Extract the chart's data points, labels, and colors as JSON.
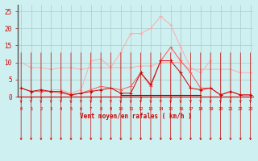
{
  "x": [
    0,
    1,
    2,
    3,
    4,
    5,
    6,
    7,
    8,
    9,
    10,
    11,
    12,
    13,
    14,
    15,
    16,
    17,
    18,
    19,
    20,
    21,
    22,
    23
  ],
  "line_mean": [
    2.5,
    1.5,
    2,
    1.5,
    1.5,
    0.5,
    1,
    1.5,
    2,
    2.5,
    1,
    1,
    7,
    3.5,
    10.5,
    10.5,
    7,
    2.5,
    2,
    2.5,
    0.5,
    1.5,
    0.5,
    0.5
  ],
  "line_flat": [
    null,
    null,
    null,
    null,
    null,
    null,
    null,
    null,
    null,
    null,
    0.5,
    0.5,
    0.5,
    0.5,
    0.5,
    0.5,
    0.5,
    0.5,
    0.5,
    null,
    null,
    null,
    null,
    null
  ],
  "line_avg": [
    10,
    8.5,
    8.5,
    8,
    8.5,
    8.5,
    8,
    8.5,
    8.5,
    8.5,
    8.5,
    8.5,
    9,
    9,
    10,
    10,
    10,
    8,
    8,
    8,
    8,
    8,
    7,
    7
  ],
  "line_med": [
    2.5,
    1.5,
    1.5,
    1.5,
    1,
    0.5,
    1,
    2,
    3,
    2.5,
    2,
    3,
    7,
    3,
    10.5,
    14.5,
    10.5,
    7,
    2.5,
    2.5,
    0.5,
    1.5,
    0.5,
    0.5
  ],
  "line_gust": [
    null,
    null,
    null,
    2,
    2,
    1,
    2,
    10.5,
    11,
    8.5,
    13,
    18.5,
    18.5,
    20,
    23.5,
    21,
    14.5,
    8.5,
    7,
    10.5,
    null,
    null,
    null,
    null
  ],
  "bg_color": "#cef0f0",
  "grid_color": "#aacccc",
  "col_dark": "#cc0000",
  "col_dark2": "#880000",
  "col_light": "#ffaaaa",
  "col_med": "#ff5555",
  "xlabel": "Vent moyen/en rafales ( km/h )",
  "yticks": [
    0,
    5,
    10,
    15,
    20,
    25
  ],
  "ylim": [
    0,
    27
  ],
  "xlim": [
    -0.3,
    23.3
  ]
}
